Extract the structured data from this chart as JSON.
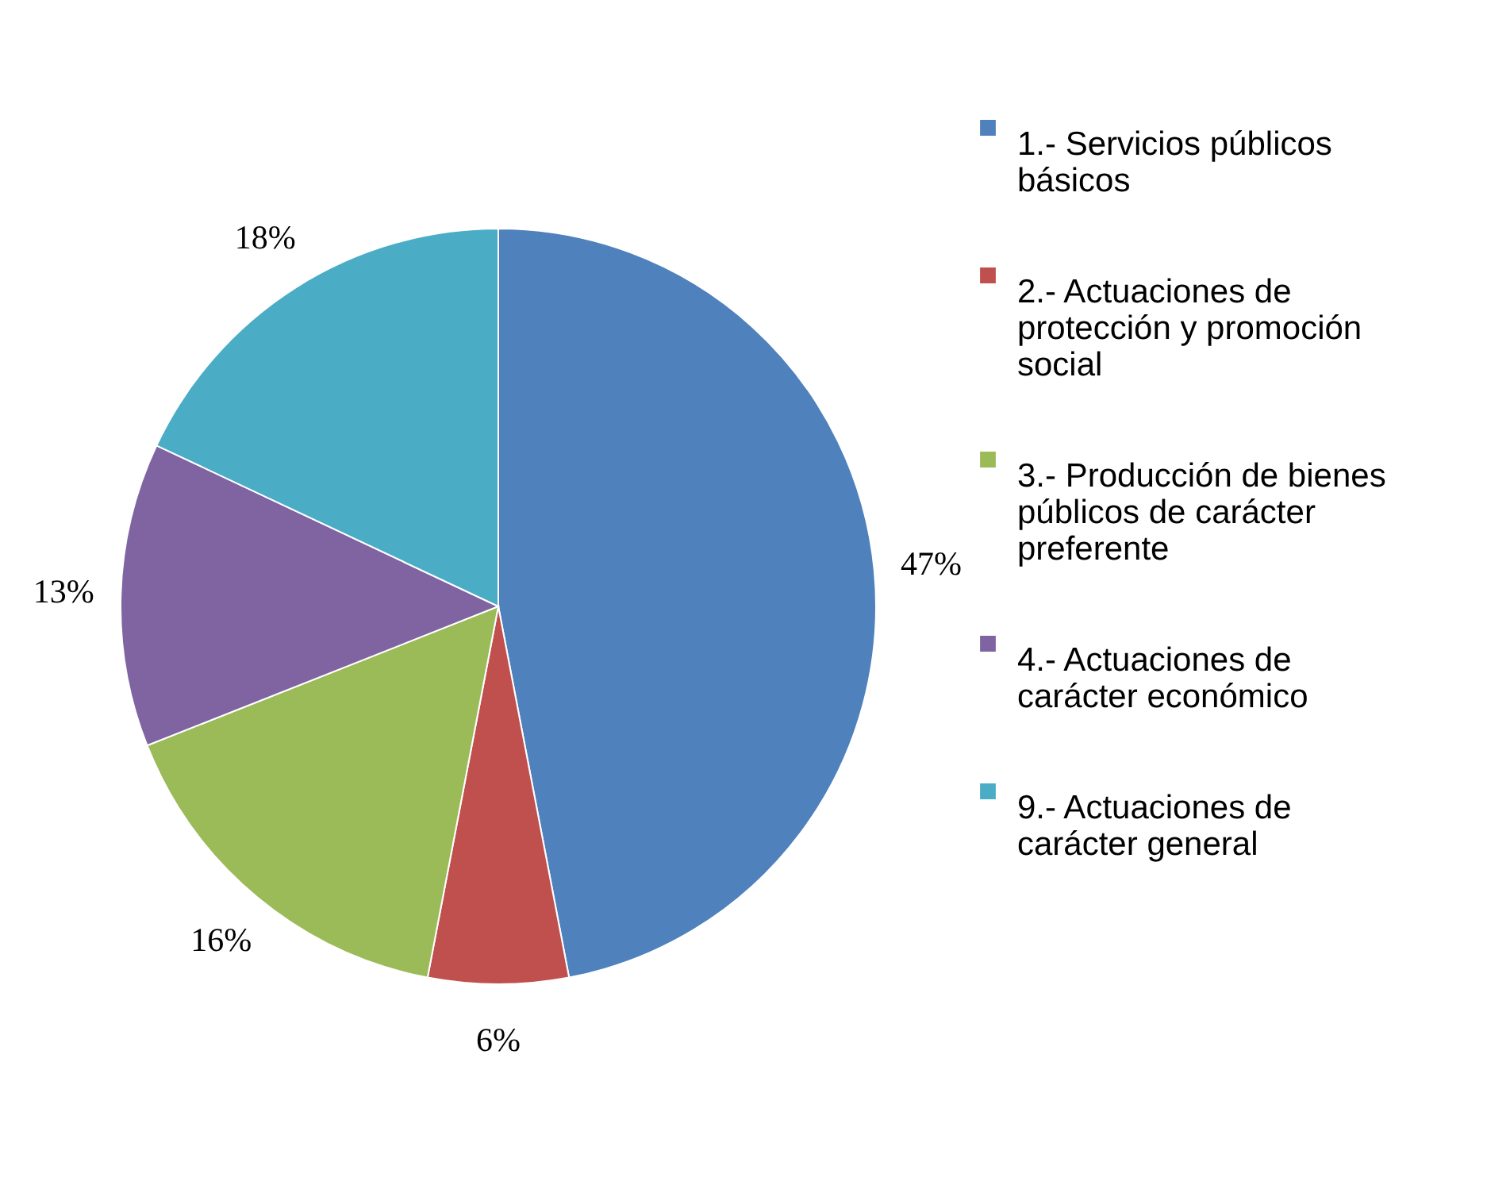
{
  "chart_data": {
    "type": "pie",
    "categories": [
      "1.- Servicios públicos básicos",
      "2.- Actuaciones de protección y promoción social",
      "3.- Producción de bienes públicos de carácter preferente",
      "4.- Actuaciones de carácter económico",
      "9.- Actuaciones de carácter general"
    ],
    "values": [
      47,
      6,
      16,
      13,
      18
    ],
    "value_labels": [
      "47%",
      "6%",
      "16%",
      "13%",
      "18%"
    ],
    "colors": [
      "#4f81bd",
      "#c0504d",
      "#9bbb59",
      "#8064a2",
      "#4bacc6"
    ],
    "legend": "right"
  }
}
